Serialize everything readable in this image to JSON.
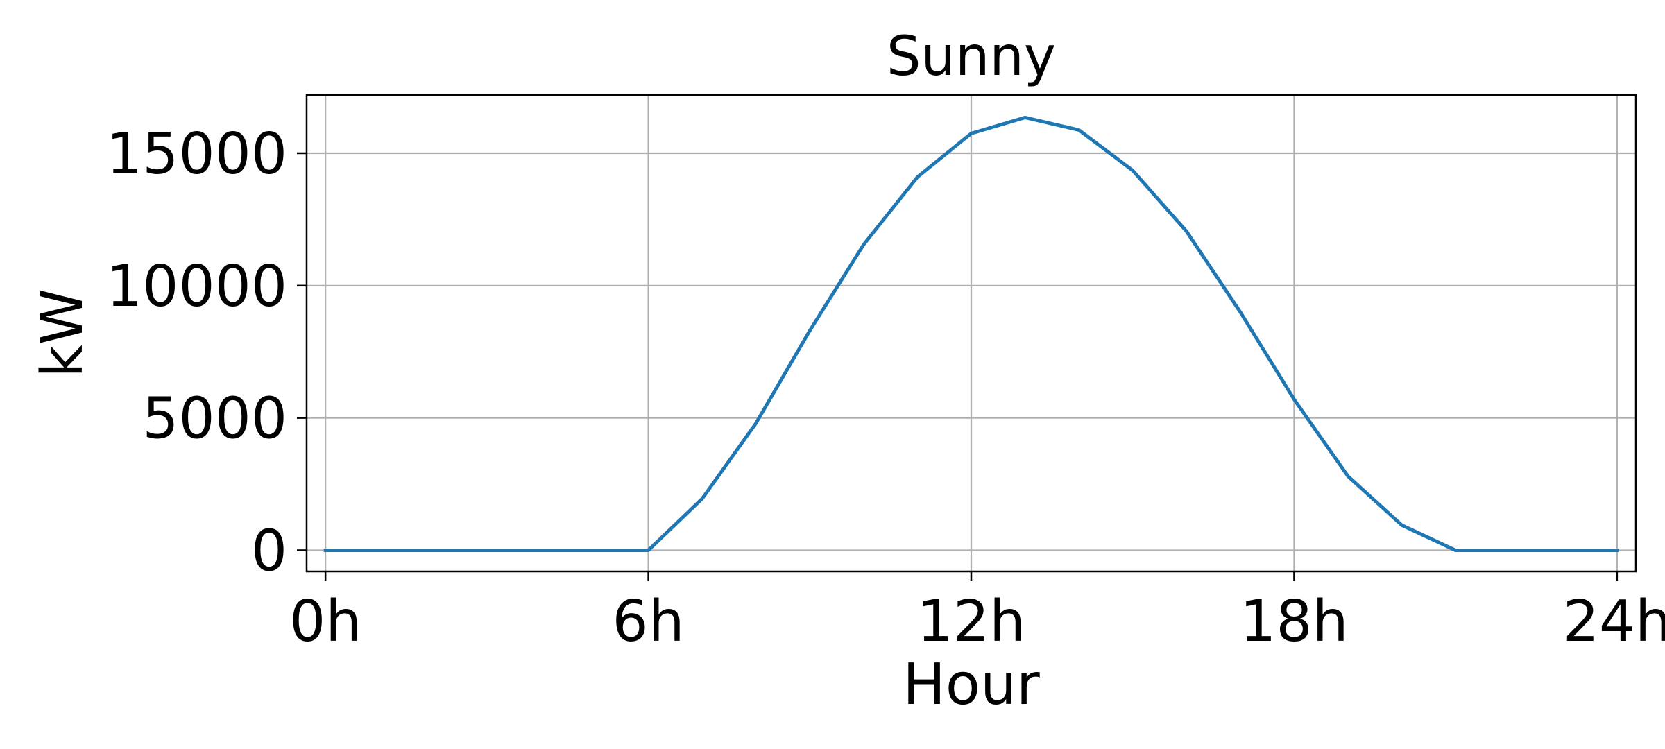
{
  "colors": {
    "series": "#1f77b4",
    "grid": "#b0b0b0",
    "axes": "#000000",
    "background": "#ffffff"
  },
  "chart_data": {
    "type": "line",
    "title": "Sunny",
    "xlabel": "Hour",
    "ylabel": "kW",
    "xlim": [
      -0.35,
      24.35
    ],
    "ylim": [
      -800,
      17200
    ],
    "grid": true,
    "legend": "none",
    "xticks": [
      {
        "value": 0,
        "label": "0h"
      },
      {
        "value": 6,
        "label": "6h"
      },
      {
        "value": 12,
        "label": "12h"
      },
      {
        "value": 18,
        "label": "18h"
      },
      {
        "value": 24,
        "label": "24h"
      }
    ],
    "yticks": [
      {
        "value": 0,
        "label": "0"
      },
      {
        "value": 5000,
        "label": "5000"
      },
      {
        "value": 10000,
        "label": "10000"
      },
      {
        "value": 15000,
        "label": "15000"
      }
    ],
    "series": [
      {
        "color": "#1f77b4",
        "x": [
          0,
          1,
          2,
          3,
          4,
          5,
          6,
          7,
          8,
          9,
          10,
          11,
          12,
          13,
          14,
          15,
          16,
          17,
          18,
          19,
          20,
          21,
          22,
          23,
          24
        ],
        "y": [
          0,
          0,
          0,
          0,
          0,
          0,
          0,
          1950,
          4800,
          8300,
          11550,
          14100,
          15750,
          16350,
          15880,
          14350,
          12050,
          9000,
          5700,
          2800,
          950,
          0,
          0,
          0,
          0
        ]
      }
    ]
  }
}
